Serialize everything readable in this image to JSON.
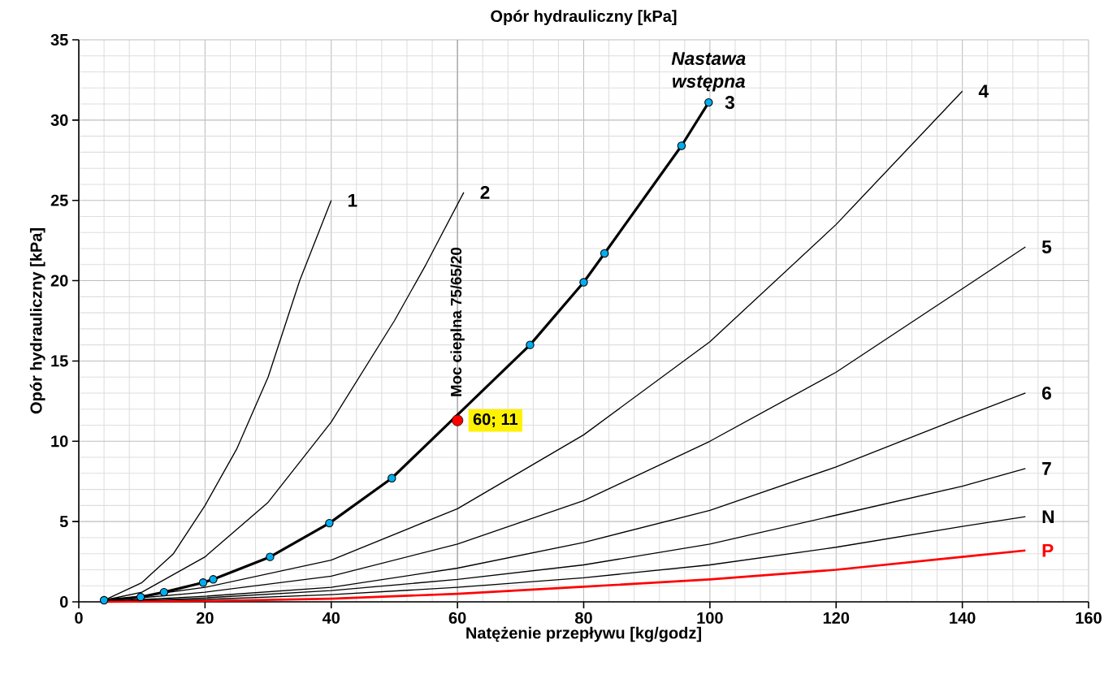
{
  "chart_data": {
    "type": "line",
    "title": "Opór hydrauliczny [kPa]",
    "xlabel": "Natężenie przepływu [kg/godz]",
    "ylabel": "Opór hydrauliczny [kPa]",
    "xlim": [
      0,
      160
    ],
    "ylim": [
      0,
      35
    ],
    "xticks": [
      0,
      20,
      40,
      60,
      80,
      100,
      120,
      140,
      160
    ],
    "yticks": [
      0,
      5,
      10,
      15,
      20,
      25,
      30,
      35
    ],
    "grid": true,
    "series": [
      {
        "name": "1",
        "color": "#000000",
        "x": [
          4,
          10,
          15,
          20,
          25,
          30,
          35,
          40
        ],
        "values": [
          0.1,
          1.2,
          3,
          6,
          9.5,
          14,
          20,
          25
        ]
      },
      {
        "name": "2",
        "color": "#000000",
        "x": [
          4,
          10,
          20,
          30,
          40,
          50,
          55,
          61
        ],
        "values": [
          0.1,
          0.6,
          2.8,
          6.2,
          11.2,
          17.5,
          21,
          25.5
        ]
      },
      {
        "name": "3",
        "color": "#000000",
        "marker": "circle",
        "x": [
          4,
          9.8,
          13.5,
          19.7,
          21.3,
          30.3,
          39.7,
          49.6,
          71.5,
          80,
          83.3,
          95.5,
          99.8
        ],
        "values": [
          0.1,
          0.3,
          0.6,
          1.2,
          1.4,
          2.8,
          4.9,
          7.7,
          16,
          19.9,
          21.7,
          28.4,
          31.1
        ]
      },
      {
        "name": "4",
        "color": "#000000",
        "x": [
          4,
          20,
          40,
          60,
          80,
          100,
          120,
          140
        ],
        "values": [
          0.05,
          0.9,
          2.6,
          5.8,
          10.4,
          16.2,
          23.5,
          31.8
        ]
      },
      {
        "name": "5",
        "color": "#000000",
        "x": [
          4,
          20,
          40,
          60,
          80,
          100,
          120,
          140,
          150
        ],
        "values": [
          0.05,
          0.6,
          1.6,
          3.6,
          6.3,
          10,
          14.3,
          19.5,
          22.1
        ]
      },
      {
        "name": "6",
        "color": "#000000",
        "x": [
          4,
          20,
          40,
          60,
          80,
          100,
          120,
          140,
          150
        ],
        "values": [
          0.03,
          0.35,
          0.9,
          2.1,
          3.7,
          5.7,
          8.4,
          11.5,
          13
        ]
      },
      {
        "name": "7",
        "color": "#000000",
        "x": [
          4,
          20,
          40,
          60,
          80,
          100,
          120,
          140,
          150
        ],
        "values": [
          0.02,
          0.25,
          0.7,
          1.4,
          2.3,
          3.6,
          5.4,
          7.2,
          8.3
        ]
      },
      {
        "name": "N",
        "color": "#000000",
        "x": [
          4,
          20,
          40,
          60,
          80,
          100,
          120,
          140,
          150
        ],
        "values": [
          0.01,
          0.15,
          0.45,
          0.9,
          1.5,
          2.3,
          3.4,
          4.7,
          5.3
        ]
      },
      {
        "name": "P",
        "color": "#ff0000",
        "x": [
          4,
          20,
          40,
          60,
          80,
          100,
          120,
          140,
          150
        ],
        "values": [
          0,
          0.05,
          0.2,
          0.5,
          0.94,
          1.4,
          2,
          2.8,
          3.2
        ]
      }
    ],
    "ref_lines": [
      {
        "axis": "x",
        "value": 60,
        "label": "Moc cieplna 75/65/20",
        "color": "#a0a0a0"
      }
    ],
    "annotations": [
      {
        "text": "60; 11",
        "x": 60,
        "y": 11.3
      },
      {
        "text": "Nastawa wstępna",
        "x": 99.8,
        "y": 31.1
      }
    ]
  }
}
